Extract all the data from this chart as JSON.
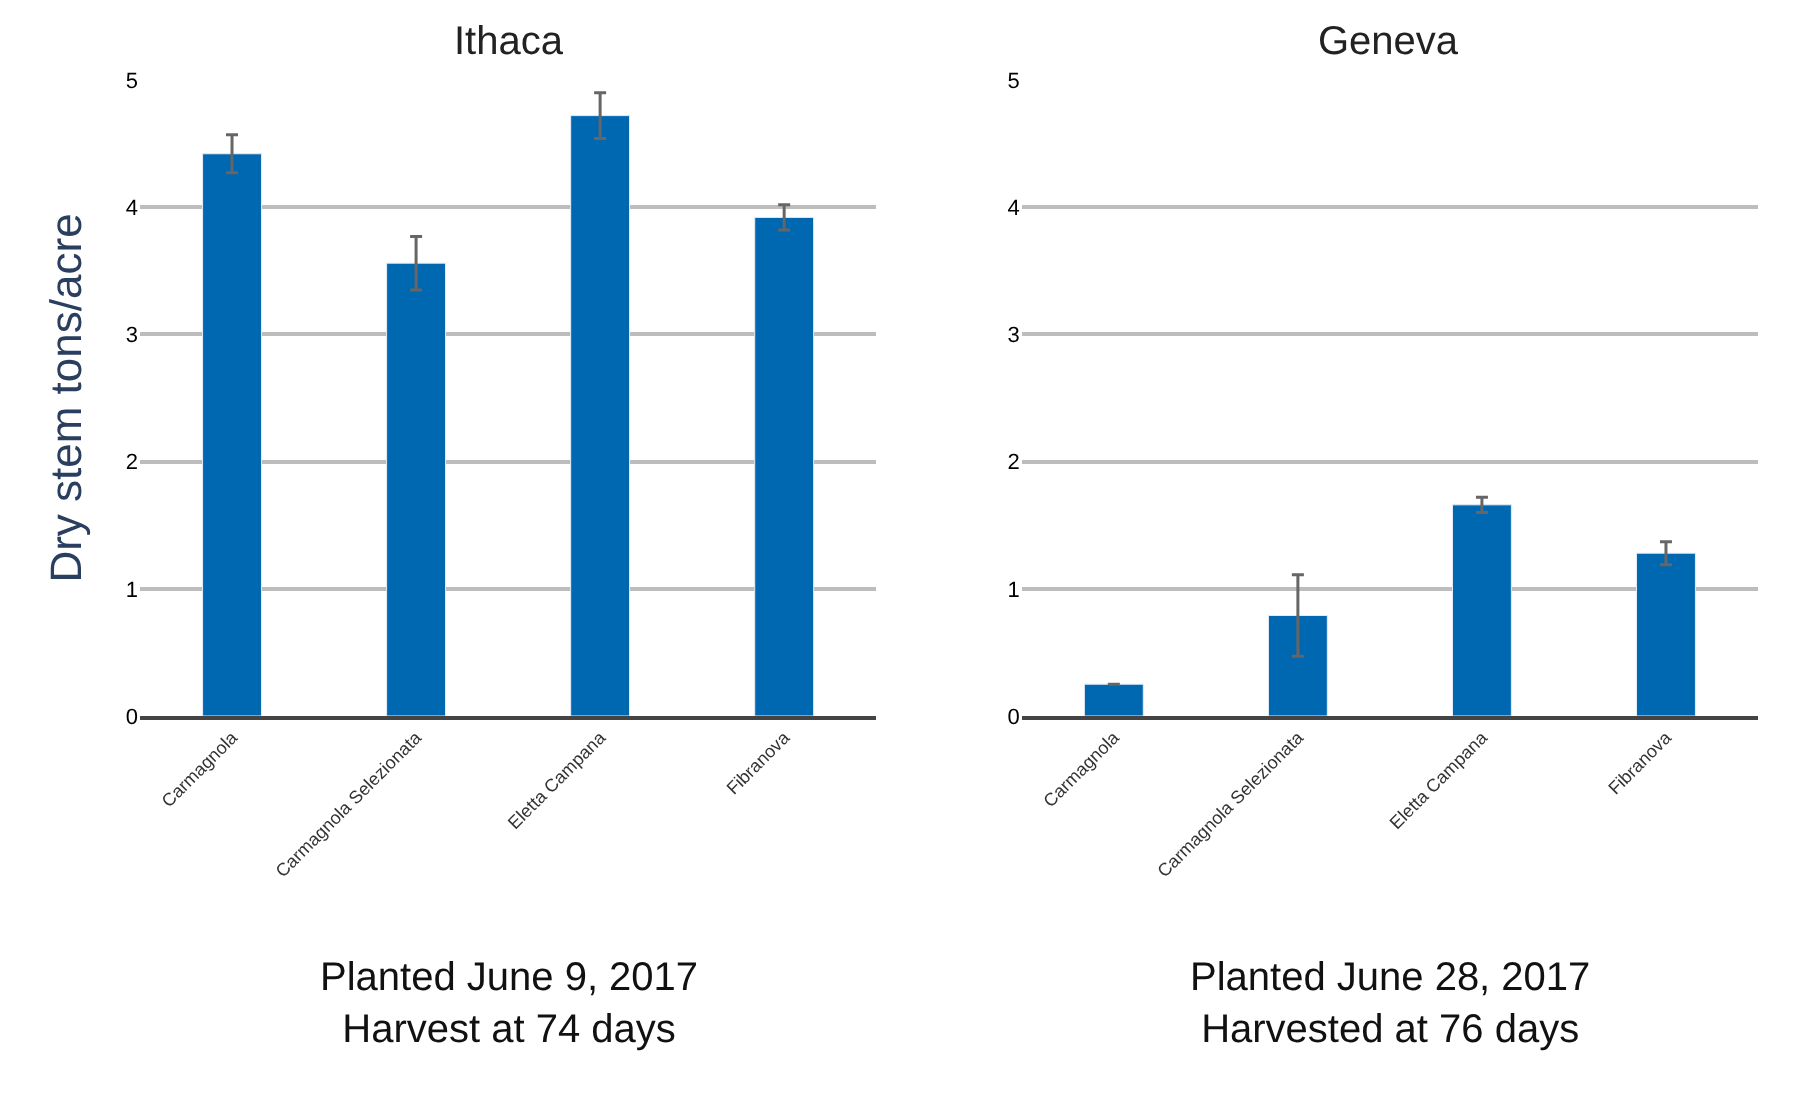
{
  "chart_data": [
    {
      "type": "bar",
      "title": "Ithaca",
      "ylabel": "Dry stem tons/acre",
      "categories": [
        "Carmagnola",
        "Carmagnola Selezionata",
        "Eletta Campana",
        "Fibranova"
      ],
      "values": [
        4.42,
        3.56,
        4.72,
        3.92
      ],
      "errors": [
        0.15,
        0.21,
        0.18,
        0.1
      ],
      "color": "#0067b1",
      "ylim": [
        0,
        5
      ],
      "yticks": [
        0,
        1,
        2,
        3,
        4,
        5
      ],
      "grid": "y",
      "annotations": [
        "Planted June 9, 2017",
        "Harvest at 74 days"
      ]
    },
    {
      "type": "bar",
      "title": "Geneva",
      "categories": [
        "Carmagnola",
        "Carmagnola Selezionata",
        "Eletta Campana",
        "Fibranova"
      ],
      "values": [
        0.25,
        0.79,
        1.66,
        1.28
      ],
      "errors": [
        null,
        0.32,
        0.06,
        0.09
      ],
      "color": "#0067b1",
      "ylim": [
        0,
        5
      ],
      "yticks": [
        0,
        1,
        2,
        3,
        4,
        5
      ],
      "grid": "y",
      "annotations": [
        "Planted June 28, 2017",
        "Harvested at 76 days"
      ]
    }
  ]
}
